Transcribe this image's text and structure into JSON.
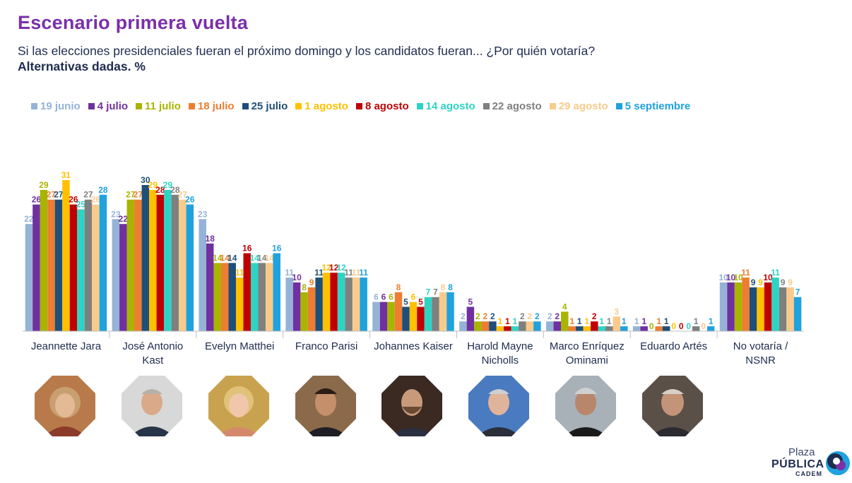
{
  "page": {
    "title": "Escenario primera vuelta",
    "subtitle": "Si las elecciones presidenciales fueran el próximo domingo y los candidatos fueran... ¿Por quién votaría?",
    "note": "Alternativas dadas. %"
  },
  "logo": {
    "top": "Plaza",
    "main": "PÚBLICA",
    "sub": "CADEM"
  },
  "chart_data": {
    "type": "bar",
    "ylim": [
      0,
      34
    ],
    "grid": false,
    "legend_position": "top",
    "categories": [
      "Jeannette Jara",
      "José Antonio Kast",
      "Evelyn Matthei",
      "Franco Parisi",
      "Johannes Kaiser",
      "Harold Mayne Nicholls",
      "Marco Enríquez Ominami",
      "Eduardo Artés",
      "No votaría / NSNR"
    ],
    "series": [
      {
        "name": "19 junio",
        "color": "#95b3d7",
        "values": [
          22,
          23,
          23,
          11,
          6,
          2,
          2,
          1,
          10
        ]
      },
      {
        "name": "4 julio",
        "color": "#7030a0",
        "values": [
          26,
          22,
          18,
          10,
          6,
          5,
          2,
          1,
          10
        ]
      },
      {
        "name": "11 julio",
        "color": "#a8b400",
        "values": [
          29,
          27,
          14,
          8,
          6,
          2,
          4,
          0,
          10
        ]
      },
      {
        "name": "18 julio",
        "color": "#ed7d31",
        "values": [
          27,
          27,
          14,
          9,
          8,
          2,
          1,
          1,
          11
        ]
      },
      {
        "name": "25 julio",
        "color": "#1f4e79",
        "values": [
          27,
          30,
          14,
          11,
          5,
          2,
          1,
          1,
          9
        ]
      },
      {
        "name": "1 agosto",
        "color": "#ffc000",
        "values": [
          31,
          29,
          11,
          12,
          6,
          1,
          1,
          0,
          9
        ]
      },
      {
        "name": "8 agosto",
        "color": "#c00000",
        "values": [
          26,
          28,
          16,
          12,
          5,
          1,
          2,
          0,
          10
        ]
      },
      {
        "name": "14 agosto",
        "color": "#2dd4c4",
        "values": [
          25,
          29,
          14,
          12,
          7,
          1,
          1,
          0,
          11
        ]
      },
      {
        "name": "22 agosto",
        "color": "#7f7f7f",
        "values": [
          27,
          28,
          14,
          11,
          7,
          2,
          1,
          1,
          9
        ]
      },
      {
        "name": "29 agosto",
        "color": "#f8cb8c",
        "values": [
          26,
          27,
          14,
          11,
          8,
          2,
          3,
          0,
          9
        ]
      },
      {
        "name": "5 septiembre",
        "color": "#1fa2dd",
        "values": [
          28,
          26,
          16,
          11,
          8,
          2,
          1,
          1,
          7
        ]
      }
    ]
  }
}
